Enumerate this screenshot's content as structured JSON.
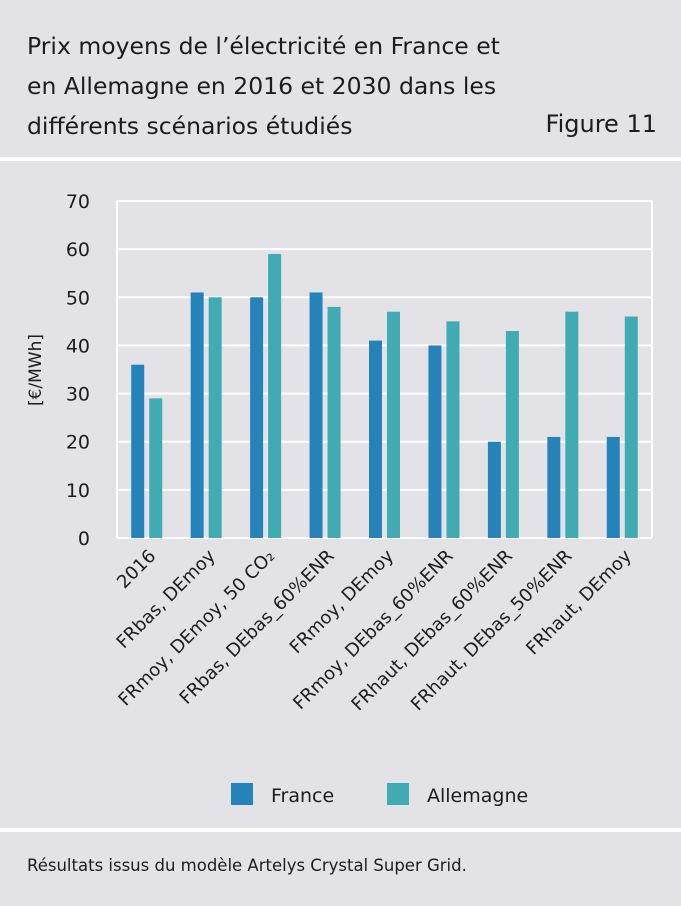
{
  "header": {
    "title_lines": [
      "Prix moyens de l’électricité en France et",
      "en Allemagne en 2016 et 2030 dans les",
      "différents scénarios étudiés"
    ],
    "figure_label": "Figure 11"
  },
  "footer": {
    "source": "Résultats issus du modèle Artelys Crystal Super Grid."
  },
  "colors": {
    "france": "#2583ba",
    "allemagne": "#40abb2",
    "grid": "#ffffff",
    "text": "#1c1c1c"
  },
  "chart_data": {
    "type": "bar",
    "title": "Prix moyens de l’électricité en France et en Allemagne en 2016 et 2030 dans les différents scénarios étudiés",
    "xlabel": "",
    "ylabel": "[€/MWh]",
    "ylim": [
      0,
      70
    ],
    "yticks": [
      0,
      10,
      20,
      30,
      40,
      50,
      60,
      70
    ],
    "grid": true,
    "legend_position": "bottom-center",
    "categories": [
      "2016",
      "FRbas, DEmoy",
      "FRmoy, DEmoy, 50 CO₂",
      "FRbas, DEbas_60%ENR",
      "FRmoy, DEmoy",
      "FRmoy, DEbas_60%ENR",
      "FRhaut, DEbas_60%ENR",
      "FRhaut, DEbas_50%ENR",
      "FRhaut, DEmoy"
    ],
    "series": [
      {
        "name": "France",
        "values": [
          36,
          51,
          50,
          51,
          41,
          40,
          20,
          21,
          21
        ]
      },
      {
        "name": "Allemagne",
        "values": [
          29,
          50,
          59,
          48,
          47,
          45,
          43,
          47,
          46
        ]
      }
    ]
  }
}
